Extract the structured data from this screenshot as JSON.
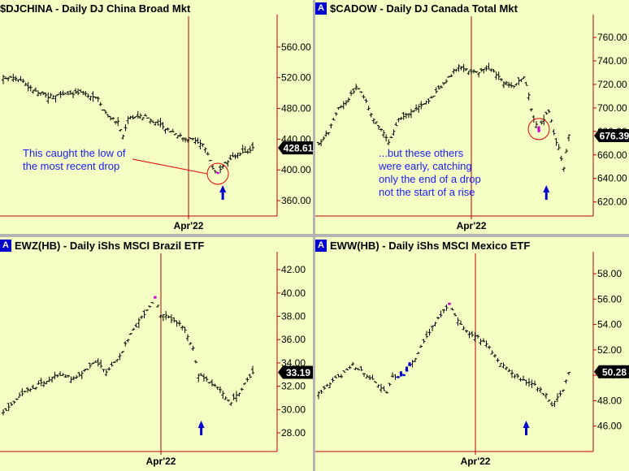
{
  "colors": {
    "panel_bg": "#f5ffc3",
    "bar": "#000000",
    "axis": "#c00000",
    "highlight_bar": "#d000d0",
    "blue_bar": "#0000cc",
    "arrow": "#0000cc",
    "annotation_text": "#1a1aff",
    "circle": "#e00000",
    "price_tag_bg": "#000000",
    "price_tag_text": "#ffffff"
  },
  "panels": [
    {
      "id": "djchina",
      "title": "$DJCHINA - Daily  DJ China Broad Mkt",
      "badge": "",
      "last_price": "428.61",
      "x_label": "Apr'22",
      "annotation": [
        "This caught the low of",
        "the most recent drop"
      ]
    },
    {
      "id": "cadow",
      "title": "$CADOW - Daily  DJ Canada Total Mkt",
      "badge": "A",
      "last_price": "676.39",
      "x_label": "Apr'22",
      "annotation": [
        "...but these others",
        "were early, catching",
        "only the end of a drop",
        "not the start of a rise"
      ]
    },
    {
      "id": "ewz",
      "title": "EWZ(HB) - Daily  iShs MSCI Brazil ETF",
      "badge": "A",
      "last_price": "33.19",
      "x_label": "Apr'22",
      "annotation": []
    },
    {
      "id": "eww",
      "title": "EWW(HB) - Daily  iShs MSCI Mexico ETF",
      "badge": "A",
      "last_price": "50.28",
      "x_label": "Apr'22",
      "annotation": []
    }
  ],
  "chart_data": [
    {
      "type": "ohlc",
      "title": "$DJCHINA - Daily  DJ China Broad Mkt",
      "ylim": [
        340,
        600
      ],
      "yticks": [
        "360.00",
        "400.00",
        "440.00",
        "480.00",
        "520.00",
        "560.00"
      ],
      "x_tick_label": "Apr'22",
      "close_points": [
        [
          0,
          520
        ],
        [
          4,
          522
        ],
        [
          8,
          516
        ],
        [
          10,
          508
        ],
        [
          14,
          500
        ],
        [
          18,
          496
        ],
        [
          22,
          498
        ],
        [
          26,
          500
        ],
        [
          30,
          500
        ],
        [
          34,
          498
        ],
        [
          38,
          494
        ],
        [
          40,
          480
        ],
        [
          42,
          470
        ],
        [
          46,
          462
        ],
        [
          48,
          444
        ],
        [
          50,
          468
        ],
        [
          54,
          470
        ],
        [
          58,
          468
        ],
        [
          60,
          462
        ],
        [
          64,
          456
        ],
        [
          68,
          450
        ],
        [
          72,
          442
        ],
        [
          76,
          440
        ],
        [
          80,
          432
        ],
        [
          82,
          422
        ],
        [
          84,
          402
        ],
        [
          86,
          395
        ],
        [
          88,
          403
        ],
        [
          90,
          412
        ],
        [
          92,
          416
        ],
        [
          94,
          420
        ],
        [
          96,
          424
        ],
        [
          98,
          424
        ],
        [
          100,
          428.61
        ]
      ],
      "highlight_index": 86,
      "signal_arrow_index": 88,
      "last_value": 428.61
    },
    {
      "type": "ohlc",
      "title": "$CADOW - Daily  DJ Canada Total Mkt",
      "ylim": [
        608,
        778
      ],
      "yticks": [
        "620.00",
        "640.00",
        "660.00",
        "680.00",
        "700.00",
        "720.00",
        "740.00",
        "760.00"
      ],
      "x_tick_label": "Apr'22",
      "close_points": [
        [
          0,
          670
        ],
        [
          4,
          680
        ],
        [
          8,
          700
        ],
        [
          12,
          708
        ],
        [
          15,
          718
        ],
        [
          18,
          710
        ],
        [
          22,
          690
        ],
        [
          26,
          680
        ],
        [
          28,
          670
        ],
        [
          32,
          690
        ],
        [
          36,
          696
        ],
        [
          40,
          700
        ],
        [
          44,
          706
        ],
        [
          48,
          716
        ],
        [
          52,
          726
        ],
        [
          56,
          736
        ],
        [
          60,
          732
        ],
        [
          64,
          730
        ],
        [
          68,
          734
        ],
        [
          70,
          730
        ],
        [
          74,
          722
        ],
        [
          78,
          718
        ],
        [
          82,
          726
        ],
        [
          84,
          710
        ],
        [
          86,
          690
        ],
        [
          88,
          682
        ],
        [
          90,
          690
        ],
        [
          92,
          698
        ],
        [
          94,
          678
        ],
        [
          96,
          665
        ],
        [
          98,
          650
        ],
        [
          100,
          676.39
        ]
      ],
      "highlight_index": 88,
      "signal_arrow_index": 91,
      "last_value": 676.39
    },
    {
      "type": "ohlc",
      "title": "EWZ(HB) - Daily  iShs MSCI Brazil ETF",
      "ylim": [
        26.4,
        43.4
      ],
      "yticks": [
        "28.00",
        "30.00",
        "32.00",
        "34.00",
        "36.00",
        "38.00",
        "40.00",
        "42.00"
      ],
      "x_tick_label": "Apr'22",
      "close_points": [
        [
          0,
          29.8
        ],
        [
          6,
          31.2
        ],
        [
          12,
          32.0
        ],
        [
          18,
          32.8
        ],
        [
          22,
          33.0
        ],
        [
          26,
          32.6
        ],
        [
          30,
          33.4
        ],
        [
          34,
          34.0
        ],
        [
          38,
          33.2
        ],
        [
          42,
          34.2
        ],
        [
          46,
          36.0
        ],
        [
          50,
          37.6
        ],
        [
          54,
          38.8
        ],
        [
          56,
          39.6
        ],
        [
          58,
          38.2
        ],
        [
          62,
          37.8
        ],
        [
          66,
          37.2
        ],
        [
          70,
          35.2
        ],
        [
          72,
          33.0
        ],
        [
          76,
          32.4
        ],
        [
          80,
          31.6
        ],
        [
          84,
          30.6
        ],
        [
          88,
          31.8
        ],
        [
          92,
          33.19
        ]
      ],
      "highlight_index": 56,
      "signal_arrow_index": 73,
      "last_value": 33.19
    },
    {
      "type": "ohlc",
      "title": "EWW(HB) - Daily  iShs MSCI Mexico ETF",
      "ylim": [
        44.0,
        59.6
      ],
      "yticks": [
        "46.00",
        "48.00",
        "50.00",
        "52.00",
        "54.00",
        "56.00",
        "58.00"
      ],
      "x_tick_label": "Apr'22",
      "close_points": [
        [
          0,
          48.6
        ],
        [
          4,
          49.4
        ],
        [
          8,
          50.0
        ],
        [
          12,
          50.8
        ],
        [
          16,
          50.2
        ],
        [
          20,
          49.4
        ],
        [
          24,
          48.6
        ],
        [
          26,
          49.8
        ],
        [
          30,
          50.0
        ],
        [
          34,
          51.4
        ],
        [
          38,
          53.0
        ],
        [
          42,
          54.6
        ],
        [
          46,
          55.6
        ],
        [
          48,
          54.8
        ],
        [
          52,
          53.4
        ],
        [
          56,
          53.0
        ],
        [
          60,
          52.2
        ],
        [
          64,
          51.0
        ],
        [
          68,
          50.2
        ],
        [
          72,
          49.6
        ],
        [
          76,
          49.2
        ],
        [
          80,
          48.4
        ],
        [
          82,
          47.6
        ],
        [
          86,
          48.8
        ],
        [
          88,
          50.28
        ]
      ],
      "highlight_index": 46,
      "blue_bar_indices": [
        28,
        29,
        30,
        31,
        32
      ],
      "signal_arrow_index": 73,
      "last_value": 50.28
    }
  ]
}
